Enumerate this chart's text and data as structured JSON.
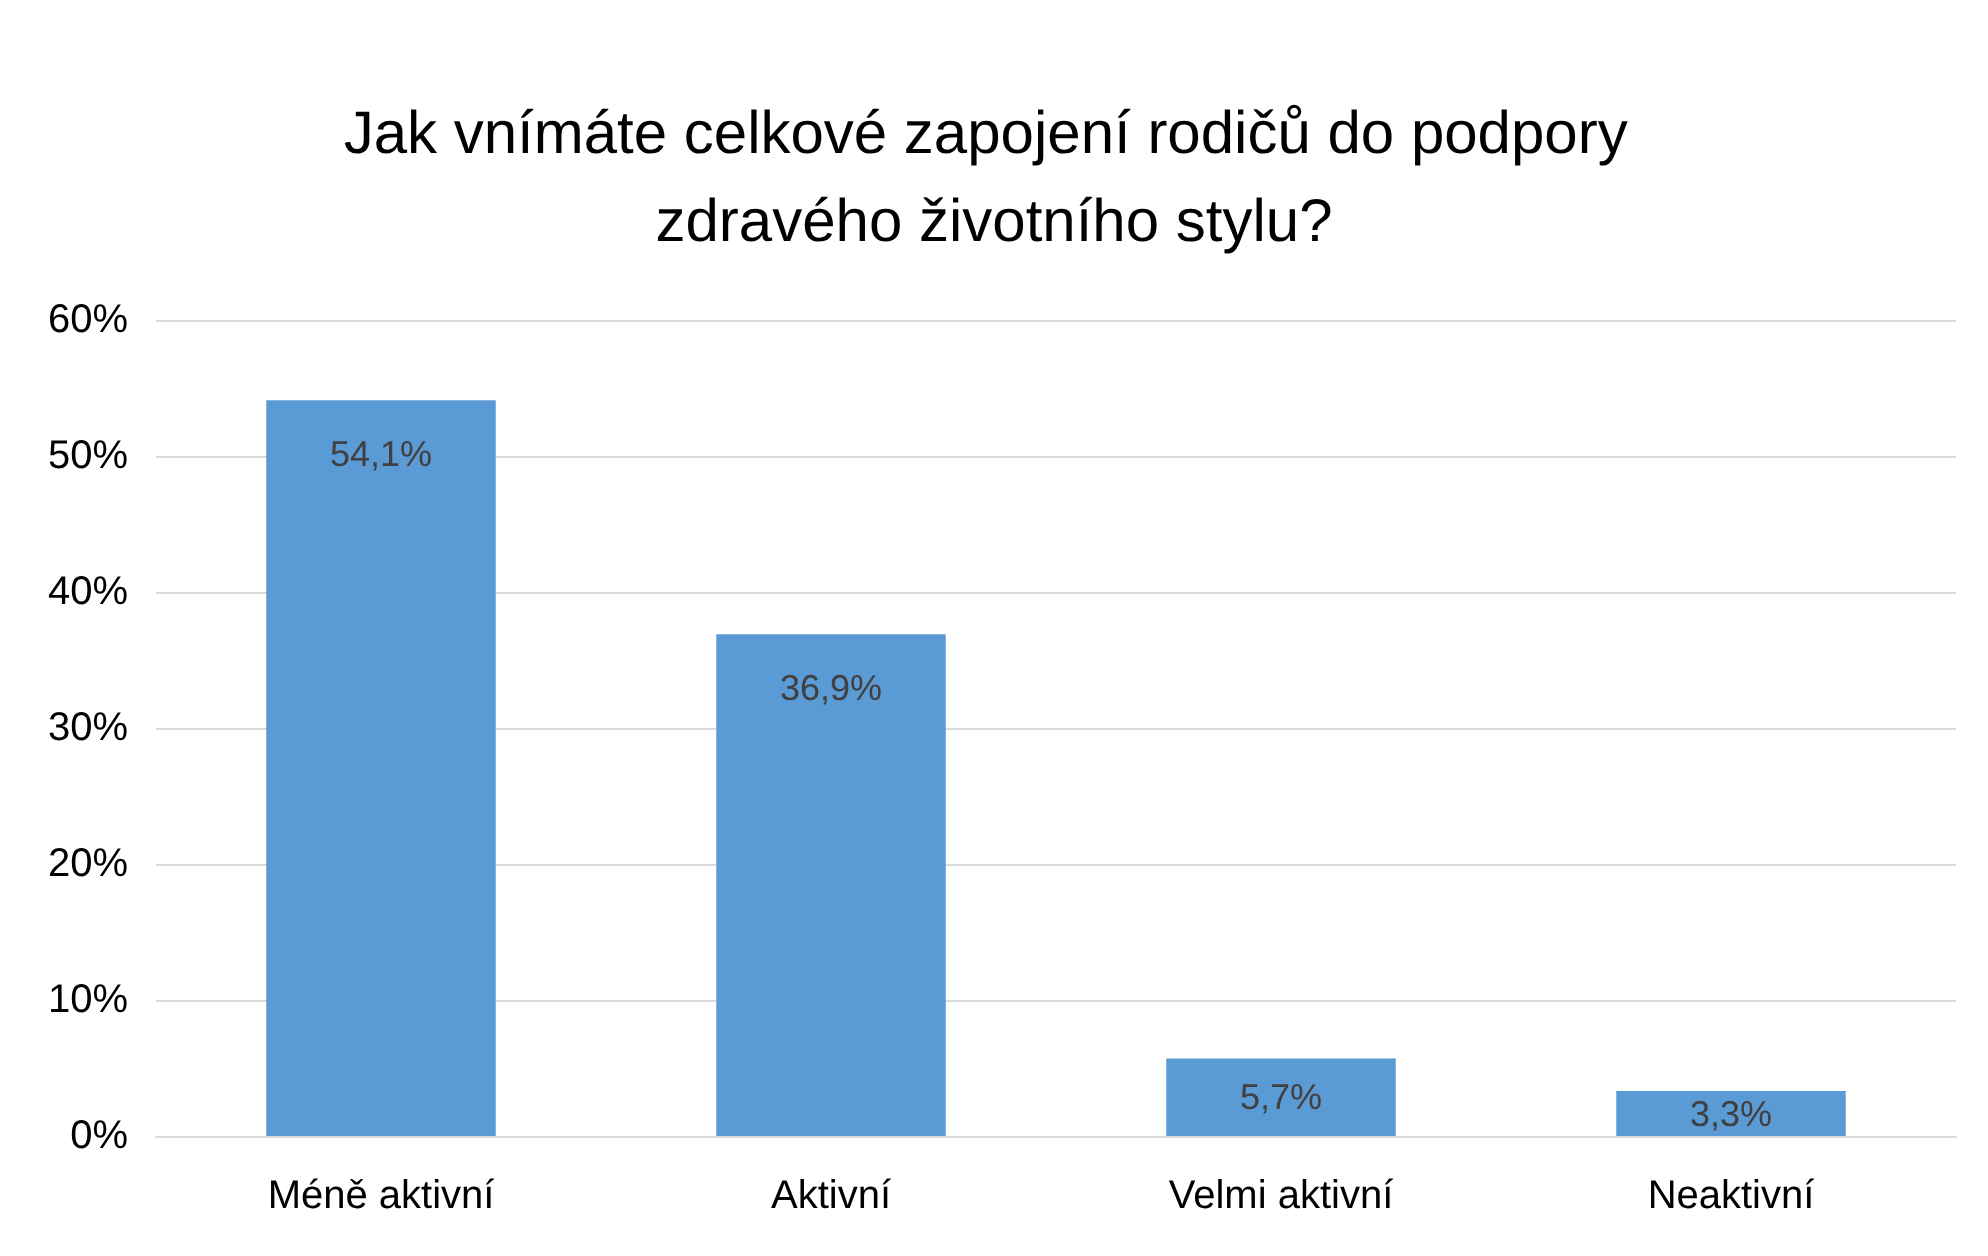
{
  "chart_data": {
    "type": "bar",
    "title": "Jak vnímáte celkové zapojení rodičů do podpory zdravého životního stylu?",
    "categories": [
      "Méně aktivní",
      "Aktivní",
      "Velmi aktivní",
      "Neaktivní"
    ],
    "values": [
      54.1,
      36.9,
      5.7,
      3.3
    ],
    "value_labels": [
      "54,1%",
      "36,9%",
      "5,7%",
      "3,3%"
    ],
    "color": "#5b9bd5",
    "ylim": [
      0,
      60
    ],
    "yticks": [
      {
        "value": 0,
        "label": "0%"
      },
      {
        "value": 10,
        "label": "10%"
      },
      {
        "value": 20,
        "label": "20%"
      },
      {
        "value": 30,
        "label": "30%"
      },
      {
        "value": 40,
        "label": "40%"
      },
      {
        "value": 50,
        "label": "50%"
      },
      {
        "value": 60,
        "label": "60%"
      }
    ],
    "grid": "y"
  }
}
